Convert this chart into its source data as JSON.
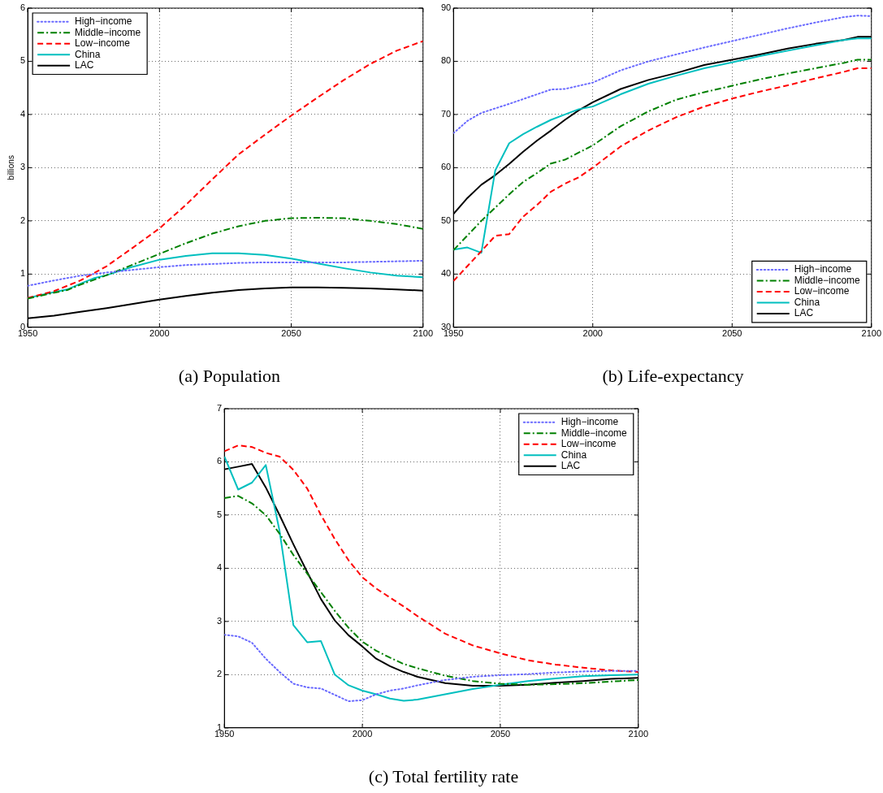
{
  "chart_data": [
    {
      "type": "line",
      "title": "(a) Population",
      "ylabel": "billions",
      "xlim": [
        1950,
        2100
      ],
      "xticks": [
        1950,
        2000,
        2050,
        2100
      ],
      "ylim": [
        0,
        6
      ],
      "yticks": [
        0,
        1,
        2,
        3,
        4,
        5,
        6
      ],
      "grid": true,
      "legend": "top left",
      "marker": "none",
      "series": [
        {
          "name": "High−income",
          "color": "#6a6aff",
          "line_style": "dotted",
          "x": [
            1950,
            1960,
            1970,
            1980,
            1990,
            2000,
            2010,
            2020,
            2030,
            2040,
            2050,
            2060,
            2070,
            2080,
            2090,
            2100
          ],
          "values": [
            0.78,
            0.88,
            0.97,
            1.03,
            1.08,
            1.13,
            1.17,
            1.19,
            1.21,
            1.22,
            1.22,
            1.22,
            1.22,
            1.23,
            1.24,
            1.25
          ]
        },
        {
          "name": "Middle−income",
          "color": "#008000",
          "line_style": "dashdot",
          "x": [
            1950,
            1960,
            1965,
            1970,
            1980,
            1990,
            2000,
            2010,
            2020,
            2030,
            2040,
            2050,
            2060,
            2070,
            2080,
            2090,
            2100
          ],
          "values": [
            0.54,
            0.65,
            0.7,
            0.8,
            0.98,
            1.18,
            1.38,
            1.58,
            1.76,
            1.9,
            2.0,
            2.05,
            2.06,
            2.05,
            2.0,
            1.94,
            1.85
          ]
        },
        {
          "name": "Low−income",
          "color": "#ff0000",
          "line_style": "dashed",
          "x": [
            1950,
            1960,
            1970,
            1980,
            1990,
            2000,
            2010,
            2020,
            2030,
            2040,
            2050,
            2060,
            2070,
            2080,
            2090,
            2100
          ],
          "values": [
            0.55,
            0.68,
            0.88,
            1.15,
            1.5,
            1.86,
            2.3,
            2.78,
            3.25,
            3.62,
            3.98,
            4.32,
            4.65,
            4.95,
            5.2,
            5.38
          ]
        },
        {
          "name": "China",
          "color": "#00bfbf",
          "line_style": "solid",
          "x": [
            1950,
            1960,
            1965,
            1970,
            1975,
            1980,
            1990,
            2000,
            2010,
            2020,
            2030,
            2040,
            2050,
            2060,
            2070,
            2080,
            2090,
            2100
          ],
          "values": [
            0.55,
            0.66,
            0.71,
            0.82,
            0.92,
            0.98,
            1.14,
            1.27,
            1.34,
            1.39,
            1.39,
            1.36,
            1.29,
            1.2,
            1.11,
            1.03,
            0.97,
            0.94
          ]
        },
        {
          "name": "LAC",
          "color": "#000000",
          "line_style": "solid",
          "x": [
            1950,
            1960,
            1970,
            1980,
            1990,
            2000,
            2010,
            2020,
            2030,
            2040,
            2050,
            2060,
            2070,
            2080,
            2090,
            2100
          ],
          "values": [
            0.17,
            0.22,
            0.29,
            0.36,
            0.44,
            0.52,
            0.59,
            0.65,
            0.7,
            0.73,
            0.75,
            0.75,
            0.74,
            0.73,
            0.71,
            0.69
          ]
        }
      ]
    },
    {
      "type": "line",
      "title": "(b) Life-expectancy",
      "xlim": [
        1950,
        2100
      ],
      "xticks": [
        1950,
        2000,
        2050,
        2100
      ],
      "ylim": [
        30,
        90
      ],
      "yticks": [
        30,
        40,
        50,
        60,
        70,
        80,
        90
      ],
      "grid": true,
      "legend": "bottom right",
      "marker": "none",
      "series": [
        {
          "name": "High−income",
          "color": "#6a6aff",
          "line_style": "dotted",
          "x": [
            1950,
            1955,
            1960,
            1970,
            1980,
            1985,
            1990,
            2000,
            2010,
            2020,
            2030,
            2040,
            2050,
            2060,
            2070,
            2080,
            2090,
            2095,
            2100
          ],
          "values": [
            66.5,
            68.8,
            70.3,
            72.0,
            73.8,
            74.7,
            74.8,
            76.0,
            78.3,
            80.0,
            81.3,
            82.6,
            83.8,
            85.0,
            86.2,
            87.3,
            88.3,
            88.6,
            88.5
          ]
        },
        {
          "name": "Middle−income",
          "color": "#008000",
          "line_style": "dashdot",
          "x": [
            1950,
            1960,
            1970,
            1975,
            1980,
            1985,
            1990,
            2000,
            2010,
            2020,
            2030,
            2040,
            2050,
            2060,
            2070,
            2080,
            2090,
            2095,
            2100
          ],
          "values": [
            44.5,
            50.0,
            55.0,
            57.3,
            59.0,
            60.8,
            61.5,
            64.2,
            67.8,
            70.6,
            72.8,
            74.2,
            75.4,
            76.6,
            77.7,
            78.7,
            79.7,
            80.3,
            80.3
          ]
        },
        {
          "name": "Low−income",
          "color": "#ff0000",
          "line_style": "dashed",
          "x": [
            1950,
            1955,
            1960,
            1965,
            1970,
            1975,
            1980,
            1985,
            1990,
            1995,
            2000,
            2010,
            2020,
            2030,
            2040,
            2050,
            2060,
            2070,
            2080,
            2090,
            2095,
            2100
          ],
          "values": [
            38.7,
            41.5,
            44.3,
            47.2,
            47.5,
            50.8,
            53.0,
            55.5,
            57.0,
            58.2,
            60.0,
            64.0,
            67.0,
            69.5,
            71.5,
            73.0,
            74.3,
            75.5,
            76.8,
            78.0,
            78.7,
            78.7
          ]
        },
        {
          "name": "China",
          "color": "#00bfbf",
          "line_style": "solid",
          "x": [
            1950,
            1955,
            1960,
            1965,
            1970,
            1975,
            1980,
            1985,
            1990,
            1995,
            2000,
            2010,
            2020,
            2030,
            2040,
            2050,
            2060,
            2070,
            2080,
            2090,
            2095,
            2100
          ],
          "values": [
            44.6,
            45.0,
            44.0,
            59.5,
            64.6,
            66.3,
            67.7,
            69.0,
            70.0,
            71.0,
            71.5,
            73.8,
            75.8,
            77.3,
            78.7,
            79.8,
            81.0,
            82.0,
            83.0,
            84.0,
            84.3,
            84.3
          ]
        },
        {
          "name": "LAC",
          "color": "#000000",
          "line_style": "solid",
          "x": [
            1950,
            1955,
            1960,
            1965,
            1970,
            1975,
            1980,
            1985,
            1990,
            1995,
            2000,
            2010,
            2020,
            2030,
            2040,
            2050,
            2060,
            2070,
            2080,
            2090,
            2095,
            2100
          ],
          "values": [
            51.3,
            54.3,
            56.8,
            58.6,
            60.7,
            63.0,
            65.1,
            67.0,
            69.0,
            70.8,
            72.3,
            74.8,
            76.5,
            77.8,
            79.3,
            80.3,
            81.3,
            82.4,
            83.3,
            84.0,
            84.6,
            84.6
          ]
        }
      ]
    },
    {
      "type": "line",
      "title": "(c) Total fertility rate",
      "xlim": [
        1950,
        2100
      ],
      "xticks": [
        1950,
        2000,
        2050,
        2100
      ],
      "ylim": [
        1,
        7
      ],
      "yticks": [
        1,
        2,
        3,
        4,
        5,
        6,
        7
      ],
      "grid": true,
      "legend": "top right",
      "marker": "none",
      "series": [
        {
          "name": "High−income",
          "color": "#6a6aff",
          "line_style": "dotted",
          "x": [
            1950,
            1955,
            1960,
            1965,
            1970,
            1975,
            1980,
            1985,
            1990,
            1995,
            2000,
            2005,
            2010,
            2015,
            2020,
            2030,
            2040,
            2050,
            2060,
            2070,
            2080,
            2090,
            2100
          ],
          "values": [
            2.75,
            2.72,
            2.6,
            2.3,
            2.05,
            1.83,
            1.76,
            1.74,
            1.62,
            1.5,
            1.52,
            1.63,
            1.7,
            1.74,
            1.8,
            1.9,
            1.96,
            1.99,
            2.01,
            2.04,
            2.06,
            2.07,
            2.07
          ]
        },
        {
          "name": "Middle−income",
          "color": "#008000",
          "line_style": "dashdot",
          "x": [
            1950,
            1955,
            1960,
            1965,
            1970,
            1975,
            1980,
            1985,
            1990,
            1995,
            2000,
            2005,
            2010,
            2015,
            2020,
            2030,
            2040,
            2050,
            2060,
            2070,
            2080,
            2090,
            2100
          ],
          "values": [
            5.32,
            5.36,
            5.22,
            5.0,
            4.65,
            4.25,
            3.9,
            3.55,
            3.2,
            2.88,
            2.62,
            2.45,
            2.32,
            2.2,
            2.12,
            1.98,
            1.88,
            1.83,
            1.81,
            1.82,
            1.84,
            1.87,
            1.9
          ]
        },
        {
          "name": "Low−income",
          "color": "#ff0000",
          "line_style": "dashed",
          "x": [
            1950,
            1955,
            1960,
            1965,
            1970,
            1975,
            1980,
            1985,
            1990,
            1995,
            2000,
            2005,
            2010,
            2015,
            2020,
            2030,
            2040,
            2050,
            2060,
            2070,
            2080,
            2090,
            2100
          ],
          "values": [
            6.2,
            6.31,
            6.28,
            6.17,
            6.1,
            5.85,
            5.5,
            5.0,
            4.55,
            4.15,
            3.83,
            3.62,
            3.45,
            3.28,
            3.1,
            2.77,
            2.55,
            2.4,
            2.27,
            2.19,
            2.13,
            2.08,
            2.05
          ]
        },
        {
          "name": "China",
          "color": "#00bfbf",
          "line_style": "solid",
          "x": [
            1950,
            1955,
            1960,
            1965,
            1970,
            1975,
            1980,
            1985,
            1990,
            1995,
            2000,
            2005,
            2010,
            2015,
            2020,
            2030,
            2040,
            2050,
            2060,
            2070,
            2080,
            2090,
            2100
          ],
          "values": [
            6.1,
            5.48,
            5.61,
            5.94,
            4.7,
            2.93,
            2.61,
            2.63,
            2.0,
            1.8,
            1.7,
            1.63,
            1.55,
            1.51,
            1.53,
            1.63,
            1.73,
            1.81,
            1.88,
            1.93,
            1.97,
            1.99,
            2.0
          ]
        },
        {
          "name": "LAC",
          "color": "#000000",
          "line_style": "solid",
          "x": [
            1950,
            1955,
            1960,
            1965,
            1970,
            1975,
            1980,
            1985,
            1990,
            1995,
            2000,
            2005,
            2010,
            2015,
            2020,
            2030,
            2040,
            2050,
            2060,
            2070,
            2080,
            2090,
            2100
          ],
          "values": [
            5.86,
            5.91,
            5.96,
            5.52,
            5.0,
            4.45,
            3.93,
            3.42,
            3.02,
            2.74,
            2.53,
            2.3,
            2.16,
            2.05,
            1.96,
            1.84,
            1.79,
            1.79,
            1.81,
            1.85,
            1.88,
            1.92,
            1.94
          ]
        }
      ]
    }
  ]
}
